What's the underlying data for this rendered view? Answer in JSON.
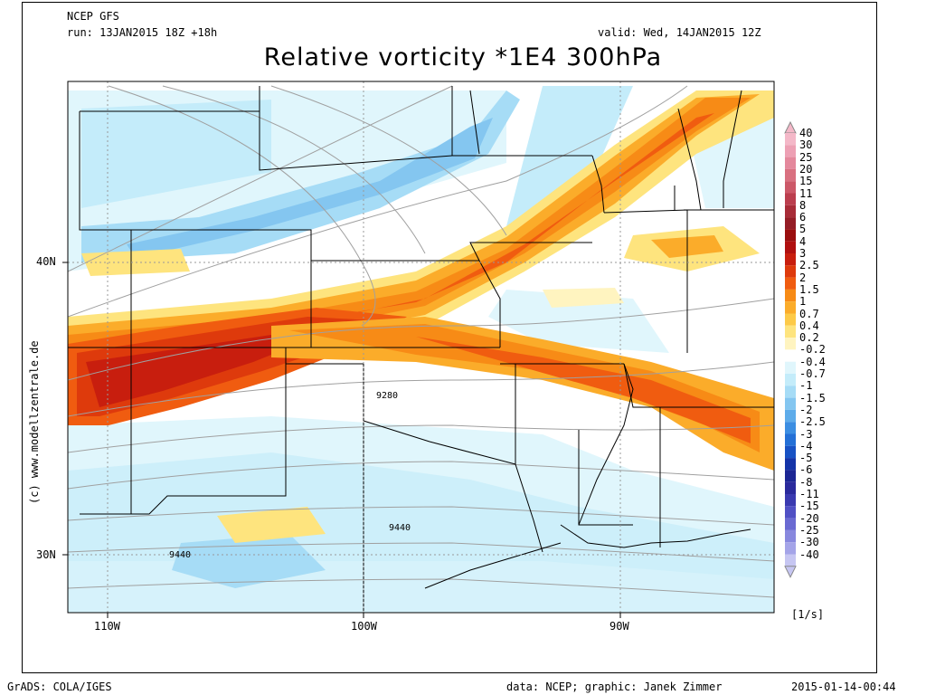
{
  "header": {
    "model": "NCEP GFS",
    "run": "run: 13JAN2015 18Z +18h",
    "valid": "valid: Wed, 14JAN2015 12Z",
    "title": "Relative vorticity *1E4 300hPa"
  },
  "watermark": "(c) www.modellzentrale.de",
  "footer": {
    "left": "GrADS: COLA/IGES",
    "center": "data: NCEP; graphic: Janek Zimmer",
    "right": "2015-01-14-00:44"
  },
  "map": {
    "lat_labels": [
      "40N",
      "30N"
    ],
    "lon_labels": [
      "110W",
      "100W",
      "90W"
    ],
    "contour_labels": [
      "9280",
      "9440",
      "9440"
    ]
  },
  "colorbar": {
    "unit": "[1/s]",
    "levels": [
      {
        "label": "40",
        "color": "#f4b8c8"
      },
      {
        "label": "30",
        "color": "#eda0b4"
      },
      {
        "label": "25",
        "color": "#e4889c"
      },
      {
        "label": "20",
        "color": "#d97080"
      },
      {
        "label": "15",
        "color": "#cc5868"
      },
      {
        "label": "11",
        "color": "#bb3e4e"
      },
      {
        "label": "8",
        "color": "#a82c38"
      },
      {
        "label": "6",
        "color": "#951d26"
      },
      {
        "label": "5",
        "color": "#9a0e0e"
      },
      {
        "label": "4",
        "color": "#b01010"
      },
      {
        "label": "3",
        "color": "#c81e0e"
      },
      {
        "label": "2.5",
        "color": "#de3a0c"
      },
      {
        "label": "2",
        "color": "#f05c10"
      },
      {
        "label": "1.5",
        "color": "#f78b16"
      },
      {
        "label": "1",
        "color": "#fbac2a"
      },
      {
        "label": "0.7",
        "color": "#fdca48"
      },
      {
        "label": "0.4",
        "color": "#fee47e"
      },
      {
        "label": "0.2",
        "color": "#fff4c0"
      },
      {
        "label": "-0.2",
        "color": "#ffffff"
      },
      {
        "label": "-0.4",
        "color": "#e0f6fc"
      },
      {
        "label": "-0.7",
        "color": "#c4ecfa"
      },
      {
        "label": "-1",
        "color": "#a6dcf6"
      },
      {
        "label": "-1.5",
        "color": "#84c6f0"
      },
      {
        "label": "-2",
        "color": "#5eacea"
      },
      {
        "label": "-2.5",
        "color": "#3c8ee2"
      },
      {
        "label": "-3",
        "color": "#2470d6"
      },
      {
        "label": "-4",
        "color": "#1852c4"
      },
      {
        "label": "-5",
        "color": "#1434a8"
      },
      {
        "label": "-6",
        "color": "#1c2694"
      },
      {
        "label": "-8",
        "color": "#2a2a9c"
      },
      {
        "label": "-11",
        "color": "#3a3ab0"
      },
      {
        "label": "-15",
        "color": "#5050c4"
      },
      {
        "label": "-20",
        "color": "#6a6ad2"
      },
      {
        "label": "-25",
        "color": "#8888de"
      },
      {
        "label": "-30",
        "color": "#a4a4e8"
      },
      {
        "label": "-40",
        "color": "#c6c6f2"
      }
    ]
  }
}
